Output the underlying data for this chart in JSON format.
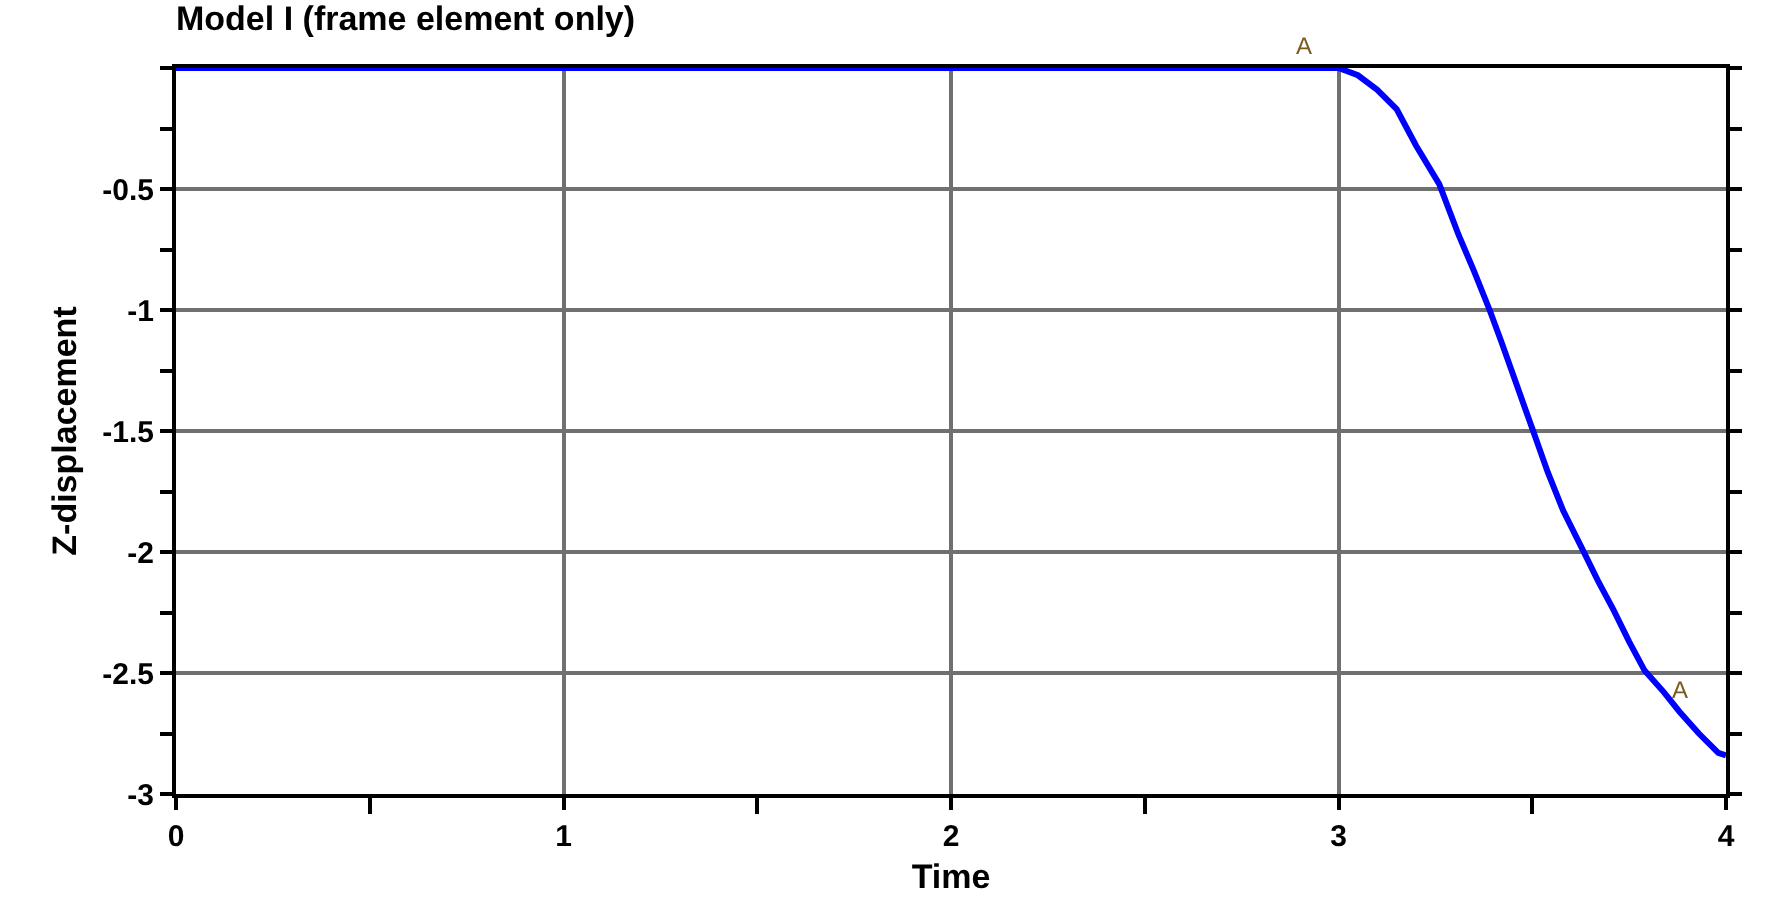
{
  "chart_data": {
    "type": "line",
    "title": "Model I (frame element only)",
    "xlabel": "Time",
    "ylabel": "Z-displacement",
    "x": [
      0,
      1,
      2,
      3.0,
      3.05,
      3.1,
      3.15,
      3.2,
      3.26,
      3.31,
      3.35,
      3.39,
      3.42,
      3.46,
      3.5,
      3.54,
      3.58,
      3.63,
      3.67,
      3.71,
      3.75,
      3.79,
      3.84,
      3.88,
      3.93,
      3.98,
      4.0
    ],
    "series": [
      {
        "color": "#0000ff",
        "values": [
          0,
          0,
          0,
          0,
          -0.03,
          -0.09,
          -0.17,
          -0.32,
          -0.48,
          -0.69,
          -0.84,
          -1.0,
          -1.13,
          -1.31,
          -1.49,
          -1.67,
          -1.83,
          -1.99,
          -2.12,
          -2.24,
          -2.37,
          -2.49,
          -2.58,
          -2.66,
          -2.75,
          -2.83,
          -2.84
        ]
      }
    ],
    "xlim": [
      0,
      4
    ],
    "ylim": [
      -3,
      0
    ],
    "xticks": [
      0,
      {
        "value": 0.5,
        "label": null
      },
      1,
      {
        "value": 1.5,
        "label": null
      },
      2,
      {
        "value": 2.5,
        "label": null
      },
      3,
      {
        "value": 3.5,
        "label": null
      },
      4
    ],
    "yticks": [
      -3,
      {
        "value": -2.75,
        "label": null
      },
      -2.5,
      {
        "value": -2.25,
        "label": null
      },
      -2,
      {
        "value": -1.75,
        "label": null
      },
      -1.5,
      {
        "value": -1.25,
        "label": null
      },
      -1,
      {
        "value": -0.75,
        "label": null
      },
      -0.5,
      {
        "value": -0.25,
        "label": null
      },
      {
        "value": 0,
        "label": null
      }
    ],
    "annotations": [
      {
        "text": "A",
        "x": 2.91,
        "y": 0
      },
      {
        "text": "A",
        "x": 3.88,
        "y": -2.66
      }
    ],
    "grid": true,
    "marker": "none",
    "line_style": "solid"
  }
}
